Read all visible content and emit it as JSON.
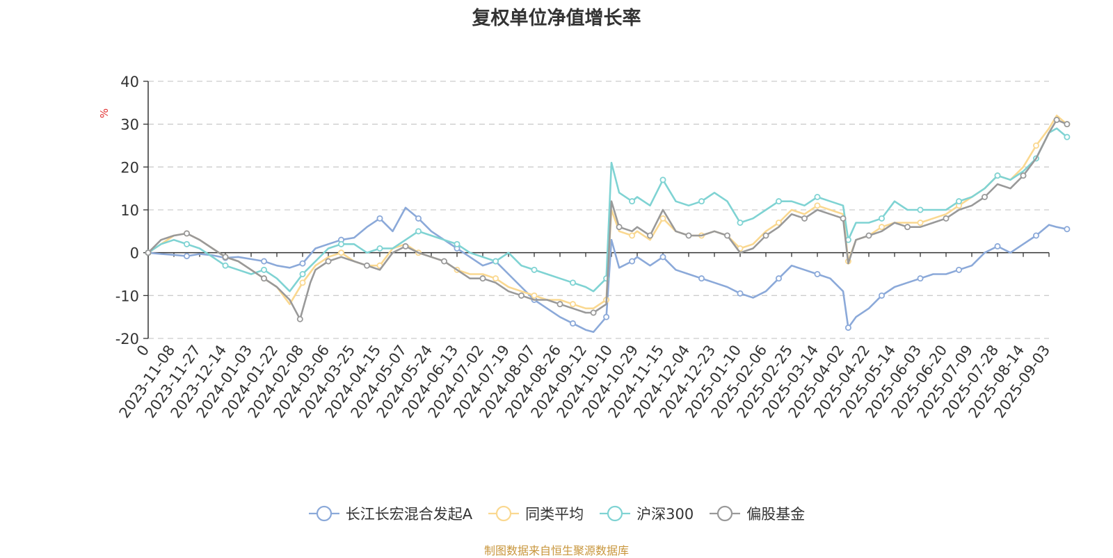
{
  "chart_data": {
    "type": "line",
    "title": "复权单位净值增长率",
    "ylabel": "%",
    "ylim": [
      -20,
      40
    ],
    "yticks": [
      -20,
      -10,
      0,
      10,
      20,
      30,
      40
    ],
    "grid": true,
    "legend_position": "bottom",
    "categories": [
      "0",
      "2023-11-08",
      "2023-11-27",
      "2023-12-14",
      "2024-01-03",
      "2024-01-22",
      "2024-02-08",
      "2024-03-06",
      "2024-03-25",
      "2024-04-15",
      "2024-05-07",
      "2024-05-24",
      "2024-06-13",
      "2024-07-02",
      "2024-07-19",
      "2024-08-07",
      "2024-08-26",
      "2024-09-12",
      "2024-10-10",
      "2024-10-29",
      "2024-11-15",
      "2024-12-04",
      "2024-12-23",
      "2025-01-10",
      "2025-02-06",
      "2025-02-25",
      "2025-03-14",
      "2025-04-02",
      "2025-04-22",
      "2025-05-14",
      "2025-06-03",
      "2025-06-20",
      "2025-07-09",
      "2025-07-28",
      "2025-08-14",
      "2025-09-03"
    ],
    "series": [
      {
        "name": "长江长宏混合发起A",
        "color": "#8ba9d9",
        "points": [
          [
            0,
            0
          ],
          [
            0.5,
            -0.3
          ],
          [
            1,
            -0.5
          ],
          [
            1.5,
            -0.8
          ],
          [
            2,
            -0.3
          ],
          [
            2.5,
            -0.6
          ],
          [
            3,
            -1.2
          ],
          [
            3.5,
            -1.0
          ],
          [
            4,
            -1.5
          ],
          [
            4.5,
            -2
          ],
          [
            5,
            -3
          ],
          [
            5.5,
            -3.5
          ],
          [
            6,
            -2.5
          ],
          [
            6.5,
            1
          ],
          [
            7,
            2
          ],
          [
            7.5,
            3
          ],
          [
            8,
            3.5
          ],
          [
            8.5,
            6
          ],
          [
            9,
            8
          ],
          [
            9.5,
            5
          ],
          [
            10,
            10.5
          ],
          [
            10.5,
            8
          ],
          [
            11,
            5
          ],
          [
            11.5,
            3
          ],
          [
            12,
            1
          ],
          [
            12.5,
            -1
          ],
          [
            13,
            -3
          ],
          [
            13.5,
            -2
          ],
          [
            14,
            -5
          ],
          [
            14.5,
            -8
          ],
          [
            15,
            -11
          ],
          [
            15.5,
            -13
          ],
          [
            16,
            -15
          ],
          [
            16.5,
            -16.5
          ],
          [
            17,
            -18
          ],
          [
            17.3,
            -18.5
          ],
          [
            17.8,
            -15
          ],
          [
            18,
            3
          ],
          [
            18.3,
            -3.5
          ],
          [
            18.8,
            -2
          ],
          [
            19,
            -1
          ],
          [
            19.5,
            -3
          ],
          [
            20,
            -1
          ],
          [
            20.5,
            -4
          ],
          [
            21,
            -5
          ],
          [
            21.5,
            -6
          ],
          [
            22,
            -7
          ],
          [
            22.5,
            -8
          ],
          [
            23,
            -9.5
          ],
          [
            23.5,
            -10.5
          ],
          [
            24,
            -9
          ],
          [
            24.5,
            -6
          ],
          [
            25,
            -3
          ],
          [
            25.5,
            -4
          ],
          [
            26,
            -5
          ],
          [
            26.5,
            -6
          ],
          [
            27,
            -9
          ],
          [
            27.2,
            -17.5
          ],
          [
            27.5,
            -15
          ],
          [
            28,
            -13
          ],
          [
            28.5,
            -10
          ],
          [
            29,
            -8
          ],
          [
            29.5,
            -7
          ],
          [
            30,
            -6
          ],
          [
            30.5,
            -5
          ],
          [
            31,
            -5
          ],
          [
            31.5,
            -4
          ],
          [
            32,
            -3
          ],
          [
            32.5,
            0
          ],
          [
            33,
            1.5
          ],
          [
            33.5,
            0
          ],
          [
            34,
            2
          ],
          [
            34.5,
            4
          ],
          [
            35,
            6.5
          ],
          [
            35.3,
            6
          ],
          [
            35.7,
            5.5
          ]
        ]
      },
      {
        "name": "同类平均",
        "color": "#fad890",
        "points": [
          [
            0,
            0
          ],
          [
            0.5,
            2
          ],
          [
            1,
            4
          ],
          [
            1.5,
            4.5
          ],
          [
            2,
            3
          ],
          [
            2.5,
            1
          ],
          [
            3,
            -1
          ],
          [
            3.5,
            -2
          ],
          [
            4,
            -4
          ],
          [
            4.5,
            -6
          ],
          [
            5,
            -8
          ],
          [
            5.5,
            -12
          ],
          [
            6,
            -7
          ],
          [
            6.5,
            -3
          ],
          [
            7,
            -1
          ],
          [
            7.5,
            0
          ],
          [
            8,
            -2
          ],
          [
            8.5,
            -3
          ],
          [
            9,
            -3
          ],
          [
            9.5,
            1
          ],
          [
            10,
            2
          ],
          [
            10.5,
            0
          ],
          [
            11,
            -1
          ],
          [
            11.5,
            -2
          ],
          [
            12,
            -4
          ],
          [
            12.5,
            -5
          ],
          [
            13,
            -5
          ],
          [
            13.5,
            -6
          ],
          [
            14,
            -8
          ],
          [
            14.5,
            -9
          ],
          [
            15,
            -10
          ],
          [
            15.5,
            -11
          ],
          [
            16,
            -11
          ],
          [
            16.5,
            -12
          ],
          [
            17,
            -13
          ],
          [
            17.3,
            -13
          ],
          [
            17.8,
            -11
          ],
          [
            18,
            10
          ],
          [
            18.3,
            5
          ],
          [
            18.8,
            4
          ],
          [
            19,
            5
          ],
          [
            19.5,
            3
          ],
          [
            20,
            8
          ],
          [
            20.5,
            5
          ],
          [
            21,
            4
          ],
          [
            21.5,
            4
          ],
          [
            22,
            5
          ],
          [
            22.5,
            4
          ],
          [
            23,
            1
          ],
          [
            23.5,
            2
          ],
          [
            24,
            5
          ],
          [
            24.5,
            7
          ],
          [
            25,
            10
          ],
          [
            25.5,
            9
          ],
          [
            26,
            11
          ],
          [
            26.5,
            10
          ],
          [
            27,
            9
          ],
          [
            27.2,
            -2
          ],
          [
            27.5,
            3
          ],
          [
            28,
            4
          ],
          [
            28.5,
            6
          ],
          [
            29,
            7
          ],
          [
            29.5,
            7
          ],
          [
            30,
            7
          ],
          [
            30.5,
            8
          ],
          [
            31,
            9
          ],
          [
            31.5,
            11
          ],
          [
            32,
            13
          ],
          [
            32.5,
            15
          ],
          [
            33,
            18
          ],
          [
            33.5,
            17
          ],
          [
            34,
            20
          ],
          [
            34.5,
            25
          ],
          [
            35,
            29
          ],
          [
            35.3,
            32
          ],
          [
            35.7,
            30
          ]
        ]
      },
      {
        "name": "沪深300",
        "color": "#7fd3d3",
        "points": [
          [
            0,
            0
          ],
          [
            0.5,
            2
          ],
          [
            1,
            3
          ],
          [
            1.5,
            2
          ],
          [
            2,
            1
          ],
          [
            2.5,
            -1
          ],
          [
            3,
            -3
          ],
          [
            3.5,
            -4
          ],
          [
            4,
            -5
          ],
          [
            4.5,
            -4
          ],
          [
            5,
            -6
          ],
          [
            5.5,
            -9
          ],
          [
            6,
            -5
          ],
          [
            6.5,
            -2
          ],
          [
            7,
            1
          ],
          [
            7.5,
            2
          ],
          [
            8,
            2
          ],
          [
            8.5,
            0
          ],
          [
            9,
            1
          ],
          [
            9.5,
            1
          ],
          [
            10,
            3
          ],
          [
            10.5,
            5
          ],
          [
            11,
            4
          ],
          [
            11.5,
            3
          ],
          [
            12,
            2
          ],
          [
            12.5,
            0
          ],
          [
            13,
            -1
          ],
          [
            13.5,
            -2
          ],
          [
            14,
            0
          ],
          [
            14.5,
            -3
          ],
          [
            15,
            -4
          ],
          [
            15.5,
            -5
          ],
          [
            16,
            -6
          ],
          [
            16.5,
            -7
          ],
          [
            17,
            -8
          ],
          [
            17.3,
            -9
          ],
          [
            17.8,
            -6
          ],
          [
            18,
            21
          ],
          [
            18.3,
            14
          ],
          [
            18.8,
            12
          ],
          [
            19,
            13
          ],
          [
            19.5,
            11
          ],
          [
            20,
            17
          ],
          [
            20.5,
            12
          ],
          [
            21,
            11
          ],
          [
            21.5,
            12
          ],
          [
            22,
            14
          ],
          [
            22.5,
            12
          ],
          [
            23,
            7
          ],
          [
            23.5,
            8
          ],
          [
            24,
            10
          ],
          [
            24.5,
            12
          ],
          [
            25,
            12
          ],
          [
            25.5,
            11
          ],
          [
            26,
            13
          ],
          [
            26.5,
            12
          ],
          [
            27,
            11
          ],
          [
            27.2,
            3
          ],
          [
            27.5,
            7
          ],
          [
            28,
            7
          ],
          [
            28.5,
            8
          ],
          [
            29,
            12
          ],
          [
            29.5,
            10
          ],
          [
            30,
            10
          ],
          [
            30.5,
            10
          ],
          [
            31,
            10
          ],
          [
            31.5,
            12
          ],
          [
            32,
            13
          ],
          [
            32.5,
            15
          ],
          [
            33,
            18
          ],
          [
            33.5,
            17
          ],
          [
            34,
            19
          ],
          [
            34.5,
            22
          ],
          [
            35,
            28
          ],
          [
            35.3,
            29
          ],
          [
            35.7,
            27
          ]
        ]
      },
      {
        "name": "偏股基金",
        "color": "#999999",
        "points": [
          [
            0,
            0
          ],
          [
            0.5,
            3
          ],
          [
            1,
            4
          ],
          [
            1.5,
            4.5
          ],
          [
            2,
            3
          ],
          [
            2.5,
            1
          ],
          [
            3,
            -1
          ],
          [
            3.5,
            -2
          ],
          [
            4,
            -4
          ],
          [
            4.5,
            -6
          ],
          [
            5,
            -8
          ],
          [
            5.5,
            -11
          ],
          [
            5.9,
            -15.5
          ],
          [
            6.3,
            -7
          ],
          [
            6.5,
            -4
          ],
          [
            7,
            -2
          ],
          [
            7.5,
            -1
          ],
          [
            8,
            -2
          ],
          [
            8.5,
            -3
          ],
          [
            9,
            -4
          ],
          [
            9.5,
            0
          ],
          [
            10,
            1.5
          ],
          [
            10.5,
            0
          ],
          [
            11,
            -1
          ],
          [
            11.5,
            -2
          ],
          [
            12,
            -4
          ],
          [
            12.5,
            -6
          ],
          [
            13,
            -6
          ],
          [
            13.5,
            -7
          ],
          [
            14,
            -9
          ],
          [
            14.5,
            -10
          ],
          [
            15,
            -11
          ],
          [
            15.5,
            -11
          ],
          [
            16,
            -12
          ],
          [
            16.5,
            -13
          ],
          [
            17,
            -14
          ],
          [
            17.3,
            -14
          ],
          [
            17.8,
            -12
          ],
          [
            18,
            12
          ],
          [
            18.3,
            6
          ],
          [
            18.8,
            5
          ],
          [
            19,
            6
          ],
          [
            19.5,
            4
          ],
          [
            20,
            10
          ],
          [
            20.5,
            5
          ],
          [
            21,
            4
          ],
          [
            21.5,
            4
          ],
          [
            22,
            5
          ],
          [
            22.5,
            4
          ],
          [
            23,
            0
          ],
          [
            23.5,
            1
          ],
          [
            24,
            4
          ],
          [
            24.5,
            6
          ],
          [
            25,
            9
          ],
          [
            25.5,
            8
          ],
          [
            26,
            10
          ],
          [
            26.5,
            9
          ],
          [
            27,
            8
          ],
          [
            27.2,
            -2.5
          ],
          [
            27.5,
            3
          ],
          [
            28,
            4
          ],
          [
            28.5,
            5
          ],
          [
            29,
            7
          ],
          [
            29.5,
            6
          ],
          [
            30,
            6
          ],
          [
            30.5,
            7
          ],
          [
            31,
            8
          ],
          [
            31.5,
            10
          ],
          [
            32,
            11
          ],
          [
            32.5,
            13
          ],
          [
            33,
            16
          ],
          [
            33.5,
            15
          ],
          [
            34,
            18
          ],
          [
            34.5,
            22
          ],
          [
            35,
            28
          ],
          [
            35.3,
            31
          ],
          [
            35.7,
            30
          ]
        ]
      }
    ]
  },
  "source_note": "制图数据来自恒生聚源数据库"
}
